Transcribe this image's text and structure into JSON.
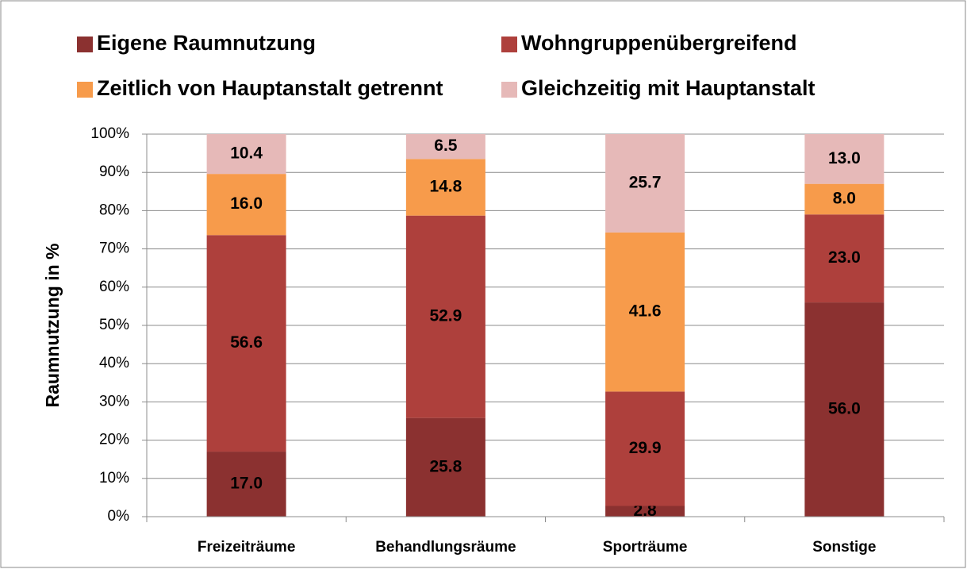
{
  "chart_data": {
    "type": "stacked_bar",
    "y_label": "Raumnutzung in %",
    "categories": [
      "Freizeiträume",
      "Behandlungsräume",
      "Sporträume",
      "Sonstige"
    ],
    "series": [
      {
        "name": "Eigene Raumnutzung",
        "color": "#8b3130",
        "values": [
          17,
          25.8,
          2.8,
          56
        ],
        "value_labels": [
          "17.0",
          "25.8",
          "2.8",
          "56.0"
        ]
      },
      {
        "name": "Wohngruppenübergreifend",
        "color": "#ae403c",
        "values": [
          56.6,
          52.9,
          29.9,
          23
        ],
        "value_labels": [
          "56.6",
          "52.9",
          "29.9",
          "23.0"
        ]
      },
      {
        "name": "Zeitlich von Hauptanstalt getrennt",
        "color": "#f79b4b",
        "values": [
          16,
          14.8,
          41.6,
          8
        ],
        "value_labels": [
          "16.0",
          "14.8",
          "41.6",
          "8.0"
        ]
      },
      {
        "name": "Gleichzeitig mit Hauptanstalt",
        "color": "#e6b9b8",
        "values": [
          10.4,
          6.5,
          25.7,
          13
        ],
        "value_labels": [
          "10.4",
          "6.5",
          "25.7",
          "13.0"
        ]
      }
    ],
    "ylim": [
      0,
      100
    ],
    "yticks": [
      {
        "value": 0,
        "label": "0%"
      },
      {
        "value": 10,
        "label": "10%"
      },
      {
        "value": 20,
        "label": "20%"
      },
      {
        "value": 30,
        "label": "30%"
      },
      {
        "value": 40,
        "label": "40%"
      },
      {
        "value": 50,
        "label": "50%"
      },
      {
        "value": 60,
        "label": "60%"
      },
      {
        "value": 70,
        "label": "70%"
      },
      {
        "value": 80,
        "label": "80%"
      },
      {
        "value": 90,
        "label": "90%"
      },
      {
        "value": 100,
        "label": "100%"
      }
    ],
    "grid": true
  }
}
